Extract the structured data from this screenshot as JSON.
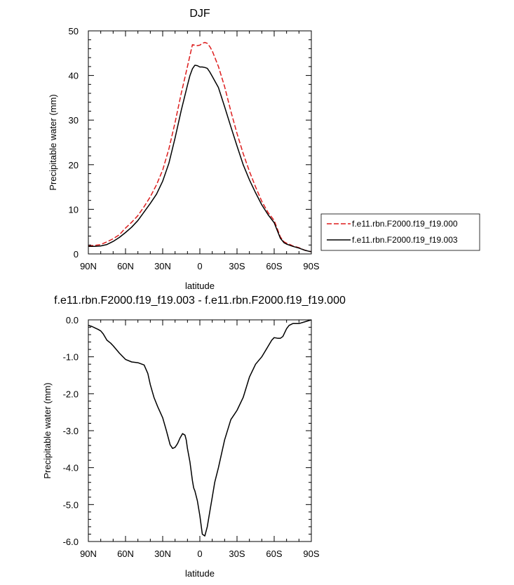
{
  "chart_data": [
    {
      "type": "line",
      "title": "DJF",
      "xlabel": "latitude",
      "ylabel": "Precipitable water (mm)",
      "xlim": [
        90,
        -90
      ],
      "ylim": [
        0,
        50
      ],
      "x_ticks": [
        {
          "value": 90,
          "label": "90N"
        },
        {
          "value": 60,
          "label": "60N"
        },
        {
          "value": 30,
          "label": "30N"
        },
        {
          "value": 0,
          "label": "0"
        },
        {
          "value": -30,
          "label": "30S"
        },
        {
          "value": -60,
          "label": "60S"
        },
        {
          "value": -90,
          "label": "90S"
        }
      ],
      "y_ticks": [
        {
          "value": 0,
          "label": "0"
        },
        {
          "value": 10,
          "label": "10"
        },
        {
          "value": 20,
          "label": "20"
        },
        {
          "value": 30,
          "label": "30"
        },
        {
          "value": 40,
          "label": "40"
        },
        {
          "value": 50,
          "label": "50"
        }
      ],
      "legend_position": "right",
      "series": [
        {
          "name": "f.e11.rbn.F2000.f19_f19.000",
          "color": "#dd1c1c",
          "dash": "dashed",
          "x": [
            90,
            85,
            80,
            75,
            70,
            65,
            60,
            55,
            50,
            45,
            40,
            35,
            30,
            25,
            20,
            15,
            10,
            8,
            6,
            4,
            2,
            0,
            -2,
            -4,
            -6,
            -8,
            -10,
            -15,
            -20,
            -25,
            -30,
            -35,
            -40,
            -45,
            -50,
            -55,
            -60,
            -65,
            -68,
            -70,
            -72,
            -75,
            -80,
            -85,
            -88,
            -90
          ],
          "y": [
            1.8,
            1.9,
            2.1,
            2.7,
            3.4,
            4.3,
            5.8,
            7.1,
            8.6,
            10.6,
            12.8,
            15.5,
            18.8,
            23.5,
            29.5,
            36.0,
            42.0,
            44.5,
            46.9,
            46.8,
            46.7,
            46.8,
            47.2,
            47.4,
            47.2,
            46.5,
            45.5,
            42.0,
            37.5,
            32.0,
            27.0,
            22.5,
            18.5,
            15.0,
            11.8,
            9.3,
            7.5,
            3.8,
            2.7,
            2.4,
            2.2,
            1.8,
            1.4,
            0.8,
            0.6,
            0.5
          ]
        },
        {
          "name": "f.e11.rbn.F2000.f19_f19.003",
          "color": "#000000",
          "dash": "solid",
          "x": [
            90,
            85,
            80,
            75,
            70,
            65,
            60,
            55,
            50,
            45,
            40,
            35,
            30,
            25,
            20,
            15,
            10,
            8,
            6,
            4,
            2,
            0,
            -2,
            -4,
            -6,
            -8,
            -10,
            -15,
            -20,
            -25,
            -30,
            -35,
            -40,
            -45,
            -50,
            -55,
            -60,
            -65,
            -68,
            -70,
            -72,
            -75,
            -80,
            -85,
            -88,
            -90
          ],
          "y": [
            1.7,
            1.7,
            1.8,
            2.1,
            2.8,
            3.7,
            4.8,
            6.0,
            7.5,
            9.4,
            11.3,
            13.4,
            16.3,
            20.3,
            26.0,
            32.2,
            37.8,
            40.0,
            41.5,
            42.3,
            42.2,
            41.9,
            41.9,
            41.8,
            41.6,
            40.8,
            39.8,
            37.3,
            33.0,
            28.5,
            24.2,
            20.0,
            16.6,
            13.7,
            11.0,
            8.8,
            7.0,
            3.5,
            2.5,
            2.2,
            2.0,
            1.7,
            1.3,
            0.8,
            0.6,
            0.5
          ]
        }
      ]
    },
    {
      "type": "line",
      "title": "f.e11.rbn.F2000.f19_f19.003 - f.e11.rbn.F2000.f19_f19.000",
      "xlabel": "latitude",
      "ylabel": "Precipitable water (mm)",
      "xlim": [
        90,
        -90
      ],
      "ylim": [
        -6,
        0
      ],
      "x_ticks": [
        {
          "value": 90,
          "label": "90N"
        },
        {
          "value": 60,
          "label": "60N"
        },
        {
          "value": 30,
          "label": "30N"
        },
        {
          "value": 0,
          "label": "0"
        },
        {
          "value": -30,
          "label": "30S"
        },
        {
          "value": -60,
          "label": "60S"
        },
        {
          "value": -90,
          "label": "90S"
        }
      ],
      "y_ticks": [
        {
          "value": 0,
          "label": "0.0"
        },
        {
          "value": -1,
          "label": "-1.0"
        },
        {
          "value": -2,
          "label": "-2.0"
        },
        {
          "value": -3,
          "label": "-3.0"
        },
        {
          "value": -4,
          "label": "-4.0"
        },
        {
          "value": -5,
          "label": "-5.0"
        },
        {
          "value": -6,
          "label": "-6.0"
        }
      ],
      "series": [
        {
          "color": "#000000",
          "dash": "solid",
          "x": [
            90,
            87,
            84,
            82,
            80,
            78,
            75,
            72,
            70,
            65,
            60,
            55,
            50,
            45,
            42,
            40,
            37,
            34,
            30,
            27,
            24,
            22,
            20,
            18,
            16,
            14,
            12,
            11,
            10,
            8,
            6,
            5,
            4,
            2,
            0,
            -2,
            -4,
            -6,
            -8,
            -10,
            -12,
            -15,
            -20,
            -25,
            -28,
            -30,
            -35,
            -40,
            -45,
            -50,
            -55,
            -58,
            -60,
            -63,
            -65,
            -67,
            -70,
            -72,
            -75,
            -78,
            -80,
            -85,
            -90
          ],
          "y": [
            -0.15,
            -0.18,
            -0.23,
            -0.26,
            -0.3,
            -0.38,
            -0.55,
            -0.63,
            -0.7,
            -0.9,
            -1.07,
            -1.14,
            -1.16,
            -1.22,
            -1.45,
            -1.75,
            -2.1,
            -2.35,
            -2.65,
            -3.0,
            -3.38,
            -3.48,
            -3.45,
            -3.35,
            -3.2,
            -3.08,
            -3.12,
            -3.25,
            -3.48,
            -3.85,
            -4.35,
            -4.55,
            -4.63,
            -4.9,
            -5.3,
            -5.8,
            -5.85,
            -5.6,
            -5.2,
            -4.8,
            -4.4,
            -4.0,
            -3.25,
            -2.7,
            -2.55,
            -2.45,
            -2.1,
            -1.55,
            -1.2,
            -1.0,
            -0.72,
            -0.55,
            -0.48,
            -0.5,
            -0.5,
            -0.45,
            -0.24,
            -0.15,
            -0.1,
            -0.1,
            -0.1,
            -0.05,
            -0.0
          ]
        }
      ]
    }
  ]
}
